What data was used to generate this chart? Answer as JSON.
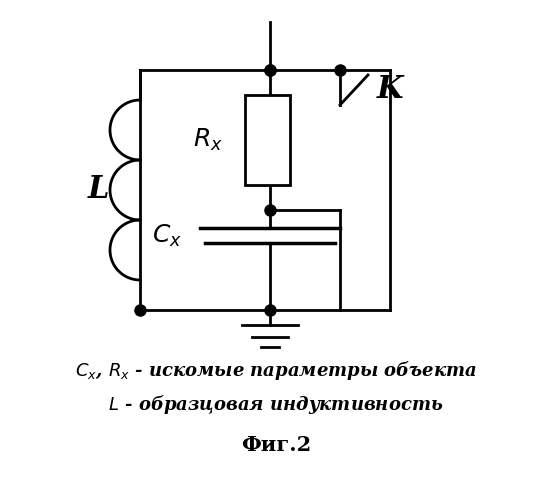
{
  "title": "Фиг.2",
  "line1": "$C_x$, $R_x$ - искомые параметры объекта",
  "line2": "$L$ - образцовая индуктивность",
  "bg_color": "#ffffff",
  "fg_color": "#000000"
}
